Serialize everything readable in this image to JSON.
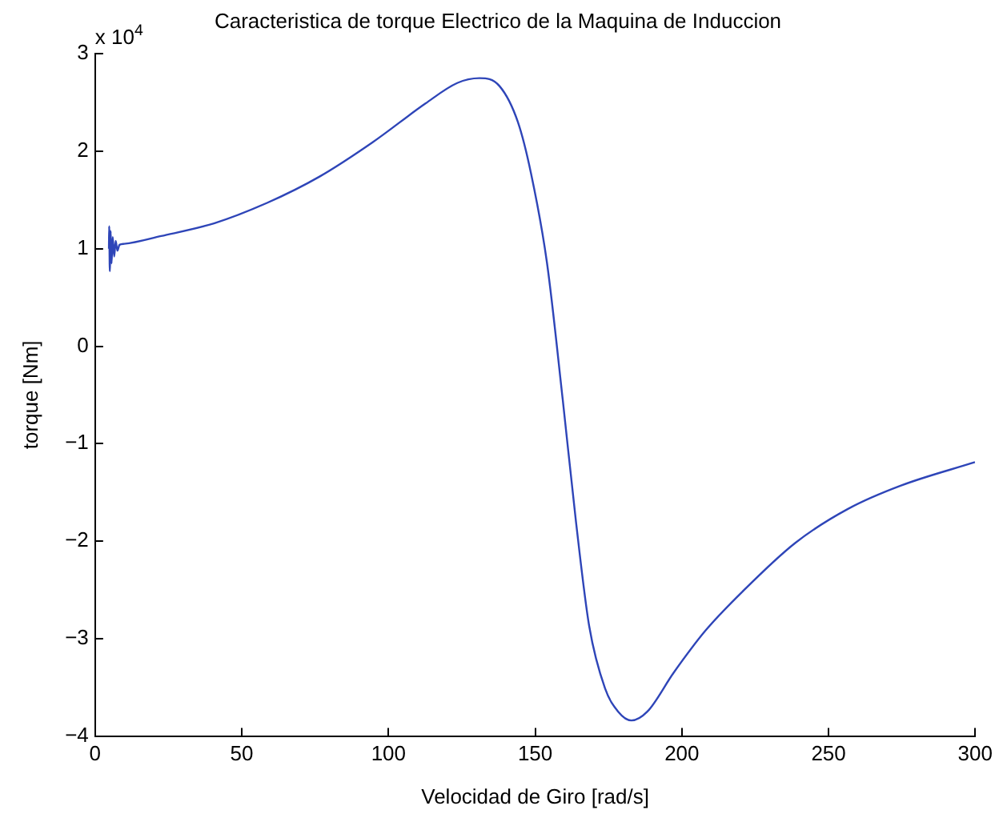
{
  "chart_data": {
    "type": "line",
    "title": "Caracteristica de torque Electrico de la Maquina de Induccion",
    "xlabel": "Velocidad de Giro [rad/s]",
    "ylabel": "torque [Nm]",
    "annotations": [
      "x 10$^{4}$"
    ],
    "x": [
      4.7,
      4.8,
      5.0,
      5.3,
      5.6,
      6.0,
      6.5,
      7.0,
      7.6,
      8.3,
      9.9,
      22.5,
      40.5,
      58.6,
      76.5,
      94.5,
      112.6,
      123.4,
      131.0,
      137.8,
      144.1,
      148.6,
      154.0,
      159.4,
      163.9,
      168.4,
      173.8,
      178.3,
      182.8,
      188.2,
      197.2,
      208.0,
      220.6,
      238.6,
      256.6,
      274.7,
      299.9
    ],
    "series": [
      {
        "color": "#2e45b8",
        "values": [
          1.0,
          1.23,
          0.77,
          1.18,
          0.85,
          1.12,
          0.92,
          1.08,
          0.98,
          1.04,
          1.05,
          1.13,
          1.26,
          1.47,
          1.74,
          2.09,
          2.49,
          2.7,
          2.75,
          2.67,
          2.3,
          1.77,
          0.86,
          -0.55,
          -1.8,
          -2.87,
          -3.51,
          -3.75,
          -3.84,
          -3.75,
          -3.35,
          -2.92,
          -2.52,
          -2.02,
          -1.67,
          -1.43,
          -1.19
        ]
      }
    ],
    "xlim": [
      0,
      300
    ],
    "xticks": [
      0,
      50,
      100,
      150,
      200,
      250,
      300
    ],
    "ylim": [
      -4,
      3
    ],
    "yticks": [
      -4,
      -3,
      -2,
      -1,
      0,
      1,
      2,
      3
    ],
    "grid": false,
    "legend": false,
    "marker": "none",
    "line_style": "solid"
  }
}
